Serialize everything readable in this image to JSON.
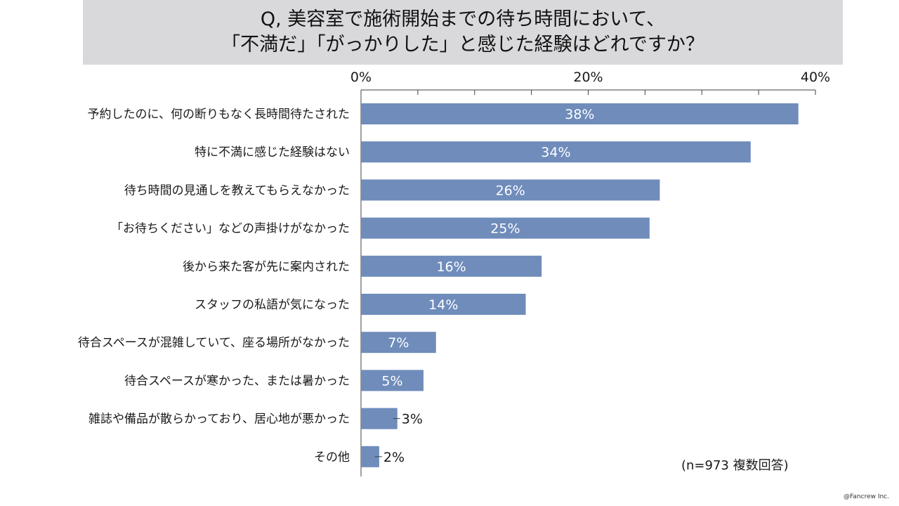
{
  "title": {
    "line1": "Q, 美容室で施術開始までの待ち時間において、",
    "line2": "「不満だ」「がっかりした」と感じた経験はどれですか？"
  },
  "note": "(n=973 複数回答)",
  "copyright": "@Fancrew Inc.",
  "colors": {
    "bar": "#6f8cbb",
    "title_bg": "#d9d9dc",
    "axis": "#404040"
  },
  "chart_data": {
    "type": "bar",
    "orientation": "horizontal",
    "categories": [
      "予約したのに、何の断りもなく長時間待たされた",
      "特に不満に感じた経験はない",
      "待ち時間の見通しを教えてもらえなかった",
      "「お待ちください」などの声掛けがなかった",
      "後から来た客が先に案内された",
      "スタッフの私語が気になった",
      "待合スペースが混雑していて、座る場所がなかった",
      "待合スペースが寒かった、または暑かった",
      "雑誌や備品が散らかっており、居心地が悪かった",
      "その他"
    ],
    "values": [
      38.5,
      34.3,
      26.3,
      25.4,
      15.9,
      14.5,
      6.6,
      5.5,
      3.2,
      1.6
    ],
    "value_labels": [
      "38%",
      "34%",
      "26%",
      "25%",
      "16%",
      "14%",
      "7%",
      "5%",
      "3%",
      "2%"
    ],
    "xlim": [
      0,
      40
    ],
    "ticks": [
      0,
      20,
      40
    ],
    "tick_labels": [
      "0%",
      "20%",
      "40%"
    ],
    "minor_tick_step": 5,
    "axis_position": "top",
    "grid": false
  }
}
